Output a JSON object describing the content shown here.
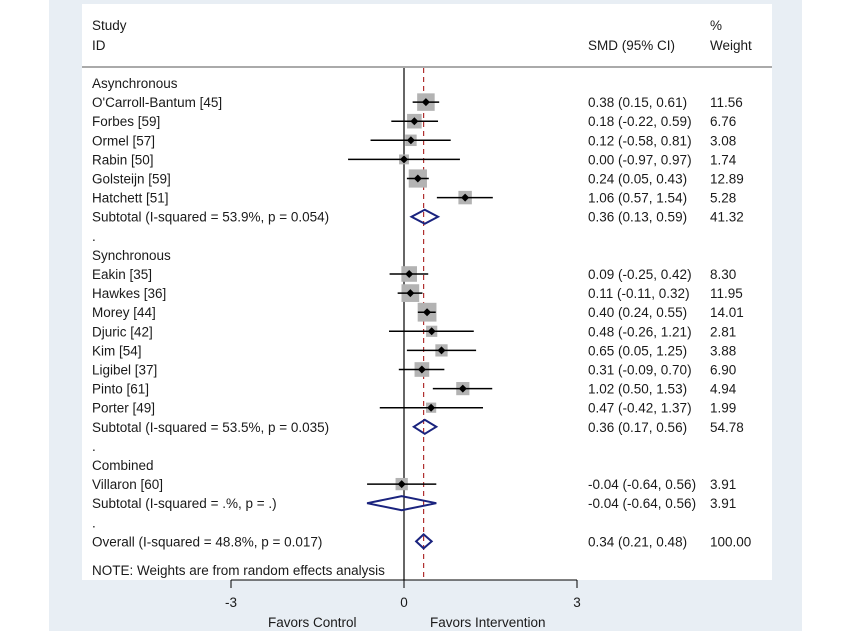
{
  "header": {
    "study": "Study",
    "id": "ID",
    "smd": "SMD (95% CI)",
    "pct": "%",
    "weight": "Weight"
  },
  "chart_data": {
    "type": "forest",
    "xticks": [
      -3,
      0,
      3
    ],
    "xlim": [
      -3,
      3
    ],
    "overall_line": 0.34,
    "xlabel_left": "Favors Control",
    "xlabel_right": "Favors Intervention",
    "note": "NOTE: Weights are from random effects analysis",
    "rows": [
      {
        "kind": "group",
        "label": "Asynchronous"
      },
      {
        "kind": "study",
        "label": "O'Carroll-Bantum [45]",
        "est": 0.38,
        "lo": 0.15,
        "hi": 0.61,
        "ci": "0.38 (0.15, 0.61)",
        "weight": "11.56",
        "w": 11.56
      },
      {
        "kind": "study",
        "label": "Forbes [59]",
        "est": 0.18,
        "lo": -0.22,
        "hi": 0.59,
        "ci": "0.18 (-0.22, 0.59)",
        "weight": "6.76",
        "w": 6.76
      },
      {
        "kind": "study",
        "label": "Ormel [57]",
        "est": 0.12,
        "lo": -0.58,
        "hi": 0.81,
        "ci": "0.12 (-0.58, 0.81)",
        "weight": "3.08",
        "w": 3.08
      },
      {
        "kind": "study",
        "label": "Rabin [50]",
        "est": 0.0,
        "lo": -0.97,
        "hi": 0.97,
        "ci": "0.00 (-0.97, 0.97)",
        "weight": "1.74",
        "w": 1.74
      },
      {
        "kind": "study",
        "label": "Golsteijn [59]",
        "est": 0.24,
        "lo": 0.05,
        "hi": 0.43,
        "ci": "0.24 (0.05, 0.43)",
        "weight": "12.89",
        "w": 12.89
      },
      {
        "kind": "study",
        "label": "Hatchett [51]",
        "est": 1.06,
        "lo": 0.57,
        "hi": 1.54,
        "ci": "1.06 (0.57, 1.54)",
        "weight": "5.28",
        "w": 5.28
      },
      {
        "kind": "subtotal",
        "label": "Subtotal  (I-squared = 53.9%, p = 0.054)",
        "est": 0.36,
        "lo": 0.13,
        "hi": 0.59,
        "ci": "0.36 (0.13, 0.59)",
        "weight": "41.32"
      },
      {
        "kind": "spacer",
        "label": "."
      },
      {
        "kind": "group",
        "label": "Synchronous"
      },
      {
        "kind": "study",
        "label": "Eakin [35]",
        "est": 0.09,
        "lo": -0.25,
        "hi": 0.42,
        "ci": "0.09 (-0.25, 0.42)",
        "weight": "8.30",
        "w": 8.3
      },
      {
        "kind": "study",
        "label": "Hawkes [36]",
        "est": 0.11,
        "lo": -0.11,
        "hi": 0.32,
        "ci": "0.11 (-0.11, 0.32)",
        "weight": "11.95",
        "w": 11.95
      },
      {
        "kind": "study",
        "label": "Morey [44]",
        "est": 0.4,
        "lo": 0.24,
        "hi": 0.55,
        "ci": "0.40 (0.24, 0.55)",
        "weight": "14.01",
        "w": 14.01
      },
      {
        "kind": "study",
        "label": "Djuric [42]",
        "est": 0.48,
        "lo": -0.26,
        "hi": 1.21,
        "ci": "0.48 (-0.26, 1.21)",
        "weight": "2.81",
        "w": 2.81
      },
      {
        "kind": "study",
        "label": "Kim [54]",
        "est": 0.65,
        "lo": 0.05,
        "hi": 1.25,
        "ci": "0.65 (0.05, 1.25)",
        "weight": "3.88",
        "w": 3.88
      },
      {
        "kind": "study",
        "label": "Ligibel [37]",
        "est": 0.31,
        "lo": -0.09,
        "hi": 0.7,
        "ci": "0.31 (-0.09, 0.70)",
        "weight": "6.90",
        "w": 6.9
      },
      {
        "kind": "study",
        "label": "Pinto [61]",
        "est": 1.02,
        "lo": 0.5,
        "hi": 1.53,
        "ci": "1.02 (0.50, 1.53)",
        "weight": "4.94",
        "w": 4.94
      },
      {
        "kind": "study",
        "label": "Porter [49]",
        "est": 0.47,
        "lo": -0.42,
        "hi": 1.37,
        "ci": "0.47 (-0.42, 1.37)",
        "weight": "1.99",
        "w": 1.99
      },
      {
        "kind": "subtotal",
        "label": "Subtotal  (I-squared = 53.5%, p = 0.035)",
        "est": 0.36,
        "lo": 0.17,
        "hi": 0.56,
        "ci": "0.36 (0.17, 0.56)",
        "weight": "54.78"
      },
      {
        "kind": "spacer",
        "label": "."
      },
      {
        "kind": "group",
        "label": "Combined"
      },
      {
        "kind": "study",
        "label": "Villaron [60]",
        "est": -0.04,
        "lo": -0.64,
        "hi": 0.56,
        "ci": "-0.04 (-0.64, 0.56)",
        "weight": "3.91",
        "w": 3.91
      },
      {
        "kind": "subtotal",
        "label": "Subtotal  (I-squared = .%, p = .)",
        "est": -0.04,
        "lo": -0.64,
        "hi": 0.56,
        "ci": "-0.04 (-0.64, 0.56)",
        "weight": "3.91"
      },
      {
        "kind": "spacer",
        "label": "."
      },
      {
        "kind": "subtotal",
        "label": "Overall  (I-squared = 48.8%, p = 0.017)",
        "est": 0.34,
        "lo": 0.21,
        "hi": 0.48,
        "ci": "0.34 (0.21, 0.48)",
        "weight": "100.00"
      }
    ]
  },
  "colors": {
    "background": "#e8eef4",
    "plot": "#ffffff",
    "diamond": "#1a237e",
    "box": "#b3b3b3",
    "overall_line": "#b03030"
  }
}
